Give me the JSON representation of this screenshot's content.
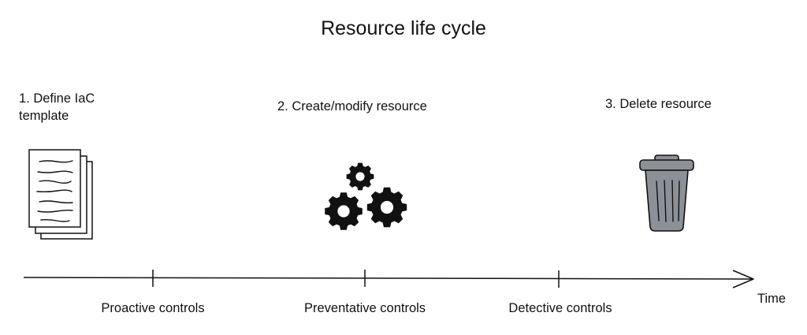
{
  "title": "Resource life cycle",
  "stages": [
    {
      "label": "1. Define IaC template",
      "icon": "document-stack-icon"
    },
    {
      "label": "2. Create/modify resource",
      "icon": "gears-icon"
    },
    {
      "label": "3. Delete resource",
      "icon": "trash-can-icon"
    }
  ],
  "controls": [
    "Proactive controls",
    "Preventative controls",
    "Detective controls"
  ],
  "axis_label": "Time"
}
